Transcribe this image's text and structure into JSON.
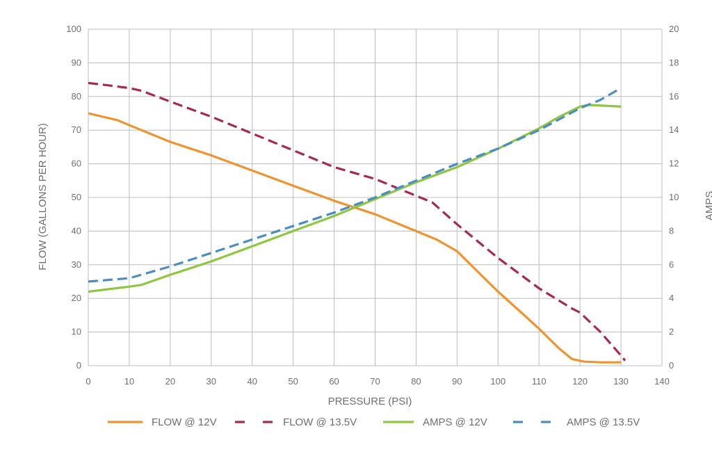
{
  "chart_data": {
    "type": "line",
    "title": "",
    "xlabel": "PRESSURE (PSI)",
    "ylabel": "FLOW (GALLONS PER HOUR)",
    "y2label": "AMPS",
    "xlim": [
      0,
      140
    ],
    "ylim": [
      0,
      100
    ],
    "y2lim": [
      0,
      20
    ],
    "xticks": [
      0,
      10,
      20,
      30,
      40,
      50,
      60,
      70,
      80,
      90,
      100,
      110,
      120,
      130,
      140
    ],
    "yticks": [
      0,
      10,
      20,
      30,
      40,
      50,
      60,
      70,
      80,
      90,
      100
    ],
    "y2ticks": [
      0,
      2,
      4,
      6,
      8,
      10,
      12,
      14,
      16,
      18,
      20
    ],
    "grid": true,
    "legend_position": "bottom",
    "series": [
      {
        "name": "FLOW @ 12V",
        "axis": "left",
        "color": "#f0932e",
        "dash": "solid",
        "points": [
          [
            0,
            75
          ],
          [
            7,
            73
          ],
          [
            12,
            70.5
          ],
          [
            20,
            66.5
          ],
          [
            25,
            64.5
          ],
          [
            30,
            62.5
          ],
          [
            40,
            58
          ],
          [
            50,
            53.5
          ],
          [
            60,
            49
          ],
          [
            70,
            45
          ],
          [
            80,
            40
          ],
          [
            85,
            37.5
          ],
          [
            90,
            34
          ],
          [
            95,
            28
          ],
          [
            100,
            22
          ],
          [
            105,
            16.5
          ],
          [
            110,
            11
          ],
          [
            115,
            5
          ],
          [
            118,
            2
          ],
          [
            121,
            1.2
          ],
          [
            125,
            1
          ],
          [
            130,
            1
          ]
        ]
      },
      {
        "name": "FLOW @ 13.5V",
        "axis": "left",
        "color": "#a8284f",
        "dash": "dashed",
        "points": [
          [
            0,
            84
          ],
          [
            5,
            83.3
          ],
          [
            10,
            82.5
          ],
          [
            13,
            81.7
          ],
          [
            20,
            78.5
          ],
          [
            30,
            74
          ],
          [
            40,
            69
          ],
          [
            50,
            64
          ],
          [
            60,
            59
          ],
          [
            70,
            55.5
          ],
          [
            80,
            50.5
          ],
          [
            84,
            48.5
          ],
          [
            90,
            42
          ],
          [
            100,
            32
          ],
          [
            110,
            23
          ],
          [
            118,
            17
          ],
          [
            120,
            15.8
          ],
          [
            125,
            10
          ],
          [
            130,
            3
          ],
          [
            131,
            1.5
          ]
        ]
      },
      {
        "name": "AMPS @ 12V",
        "axis": "right",
        "color": "#8dc63f",
        "dash": "solid",
        "points": [
          [
            0,
            4.4
          ],
          [
            10,
            4.7
          ],
          [
            13,
            4.8
          ],
          [
            20,
            5.4
          ],
          [
            30,
            6.2
          ],
          [
            40,
            7.1
          ],
          [
            50,
            8
          ],
          [
            60,
            8.9
          ],
          [
            70,
            9.9
          ],
          [
            80,
            10.9
          ],
          [
            90,
            11.8
          ],
          [
            100,
            12.9
          ],
          [
            110,
            14.1
          ],
          [
            115,
            14.8
          ],
          [
            120,
            15.4
          ],
          [
            122,
            15.5
          ],
          [
            130,
            15.4
          ]
        ]
      },
      {
        "name": "AMPS @ 13.5V",
        "axis": "right",
        "color": "#4a8cc4",
        "dash": "dashed",
        "points": [
          [
            0,
            5
          ],
          [
            10,
            5.2
          ],
          [
            20,
            5.9
          ],
          [
            30,
            6.7
          ],
          [
            40,
            7.5
          ],
          [
            50,
            8.3
          ],
          [
            60,
            9.1
          ],
          [
            70,
            10
          ],
          [
            80,
            11
          ],
          [
            90,
            12
          ],
          [
            100,
            12.9
          ],
          [
            110,
            14
          ],
          [
            120,
            15.3
          ],
          [
            125,
            15.8
          ],
          [
            130,
            16.5
          ]
        ]
      }
    ]
  }
}
